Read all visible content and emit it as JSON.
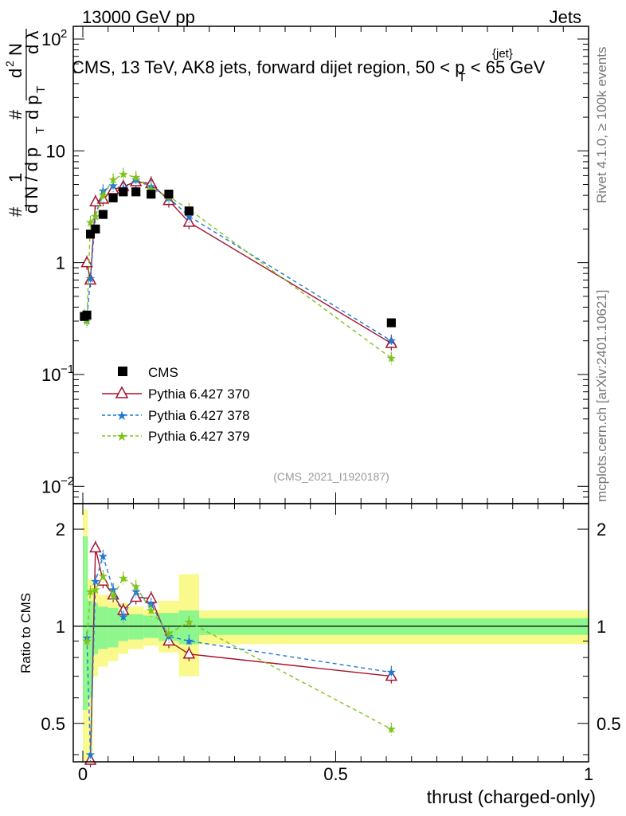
{
  "header": {
    "left": "13000 GeV pp",
    "right": "Jets"
  },
  "title": {
    "prefix": "CMS, 13 TeV, AK8 jets, forward dijet region, 50 < ",
    "p": "p",
    "sub": "T",
    "sup": "{jet}",
    "suffix": " < 65 GeV"
  },
  "side_text": {
    "rivet": "Rivet 4.1.0, ≥ 100k events",
    "mcplots": "mcplots.cern.ch [arXiv:2401.10621]"
  },
  "watermark": "(CMS_2021_I1920187)",
  "axes": {
    "ylabel_pieces": [
      "#",
      "1",
      "d N / d p",
      "T",
      "#",
      "d p",
      "T",
      "d",
      "2",
      "N",
      "d λ"
    ],
    "ratio_ylabel": "Ratio to CMS",
    "xlabel": "thrust (charged-only)",
    "main_yticks": [
      "10",
      "−2",
      "10",
      "−1",
      "1",
      "10",
      "10",
      "2"
    ],
    "ratio_yticks": [
      "0.5",
      "1",
      "2"
    ],
    "xticks": [
      "0",
      "0.5",
      "1"
    ]
  },
  "legend": [
    "CMS",
    "Pythia 6.427 370",
    "Pythia 6.427 378",
    "Pythia 6.427 379"
  ],
  "colors": {
    "cms": "#000000",
    "p370": "#a5122e",
    "p378": "#1f78d4",
    "p379": "#7ec31a",
    "band_inner": "#8df78d",
    "band_outer": "#fafa8c"
  },
  "chart_data": {
    "type": "scatter",
    "x_label": "thrust (charged-only)",
    "xlim": [
      0,
      1
    ],
    "main": {
      "yscale": "log",
      "ylim": [
        0.007,
        130
      ],
      "series": [
        {
          "name": "CMS",
          "marker": "square",
          "x": [
            0.003,
            0.008,
            0.015,
            0.025,
            0.04,
            0.06,
            0.08,
            0.105,
            0.135,
            0.17,
            0.21,
            0.61
          ],
          "y": [
            0.33,
            0.34,
            1.8,
            2.0,
            2.7,
            3.8,
            4.3,
            4.3,
            4.1,
            4.1,
            2.9,
            0.29
          ]
        },
        {
          "name": "Pythia 6.427 370",
          "marker": "open-triangle",
          "x": [
            0.008,
            0.015,
            0.025,
            0.04,
            0.06,
            0.08,
            0.105,
            0.135,
            0.17,
            0.21,
            0.61
          ],
          "y": [
            1.0,
            0.7,
            3.5,
            3.7,
            4.5,
            4.8,
            5.3,
            5.1,
            3.6,
            2.3,
            0.19
          ]
        },
        {
          "name": "Pythia 6.427 378",
          "marker": "star",
          "dashed": true,
          "x": [
            0.003,
            0.008,
            0.015,
            0.025,
            0.04,
            0.06,
            0.08,
            0.105,
            0.135,
            0.17,
            0.21,
            0.61
          ],
          "y": [
            0.33,
            0.31,
            0.72,
            2.6,
            4.4,
            4.9,
            4.6,
            5.5,
            4.8,
            3.8,
            2.6,
            0.2
          ]
        },
        {
          "name": "Pythia 6.427 379",
          "marker": "star",
          "dashed": true,
          "x": [
            0.003,
            0.008,
            0.015,
            0.025,
            0.04,
            0.06,
            0.08,
            0.105,
            0.135,
            0.17,
            0.21,
            0.61
          ],
          "y": [
            0.34,
            0.3,
            2.3,
            2.6,
            4.0,
            5.5,
            6.2,
            5.8,
            4.5,
            3.9,
            3.0,
            0.14
          ]
        }
      ]
    },
    "ratio": {
      "yscale": "log",
      "ylim": [
        0.38,
        2.4
      ],
      "bins": [
        0,
        0.005,
        0.01,
        0.02,
        0.03,
        0.05,
        0.07,
        0.09,
        0.12,
        0.15,
        0.19,
        0.23,
        1.0
      ],
      "band_inner": [
        [
          0.55,
          1.9
        ],
        [
          0.55,
          1.9
        ],
        [
          0.6,
          1.2
        ],
        [
          0.82,
          1.18
        ],
        [
          0.85,
          1.15
        ],
        [
          0.86,
          1.14
        ],
        [
          0.9,
          1.1
        ],
        [
          0.91,
          1.09
        ],
        [
          0.92,
          1.08
        ],
        [
          0.9,
          1.1
        ],
        [
          0.88,
          1.12
        ],
        [
          0.94,
          1.06
        ]
      ],
      "band_outer": [
        [
          0.38,
          2.3
        ],
        [
          0.38,
          2.3
        ],
        [
          0.38,
          1.4
        ],
        [
          0.7,
          1.3
        ],
        [
          0.75,
          1.25
        ],
        [
          0.78,
          1.2
        ],
        [
          0.82,
          1.18
        ],
        [
          0.85,
          1.15
        ],
        [
          0.87,
          1.13
        ],
        [
          0.83,
          1.2
        ],
        [
          0.7,
          1.45
        ],
        [
          0.88,
          1.12
        ]
      ],
      "series": [
        {
          "name": "Pythia 6.427 370",
          "x": [
            0.015,
            0.025,
            0.04,
            0.06,
            0.08,
            0.105,
            0.135,
            0.17,
            0.21,
            0.61
          ],
          "y": [
            0.38,
            1.75,
            1.38,
            1.25,
            1.12,
            1.23,
            1.22,
            0.9,
            0.82,
            0.7
          ]
        },
        {
          "name": "Pythia 6.427 378",
          "x": [
            0.008,
            0.015,
            0.025,
            0.04,
            0.06,
            0.08,
            0.105,
            0.135,
            0.17,
            0.21,
            0.61
          ],
          "y": [
            0.92,
            0.4,
            1.38,
            1.65,
            1.3,
            1.07,
            1.28,
            1.17,
            0.93,
            0.9,
            0.72
          ]
        },
        {
          "name": "Pythia 6.427 379",
          "x": [
            0.008,
            0.015,
            0.025,
            0.04,
            0.06,
            0.08,
            0.105,
            0.135,
            0.17,
            0.21,
            0.61
          ],
          "y": [
            0.9,
            1.28,
            1.3,
            1.43,
            1.24,
            1.41,
            1.33,
            1.12,
            0.95,
            1.03,
            0.48
          ]
        }
      ]
    }
  }
}
